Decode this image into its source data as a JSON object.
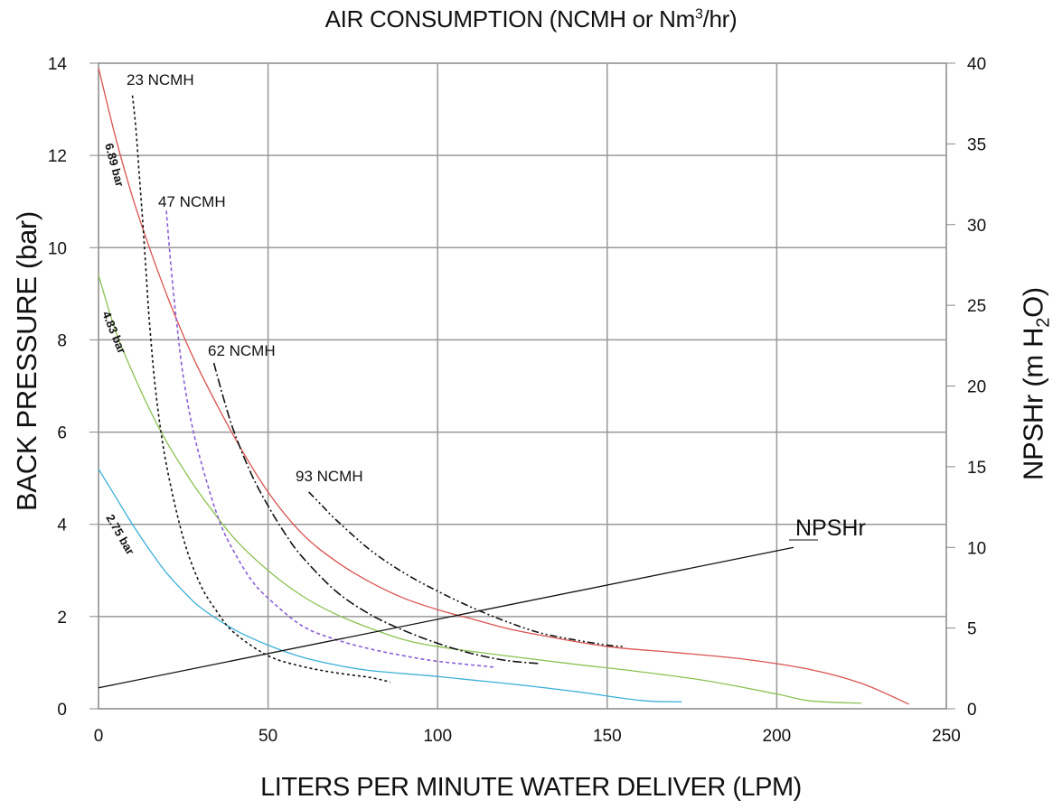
{
  "chart_data": {
    "type": "line",
    "title": {
      "main": "AIR CONSUMPTION (NCMH or Nm",
      "sup": "3",
      "tail": "/hr)"
    },
    "xlabel": "LITERS PER MINUTE WATER DELIVER (LPM)",
    "ylabel": "BACK PRESSURE (bar)",
    "y2label": {
      "main": "NPSHr (m H",
      "sub": "2",
      "tail": "O)"
    },
    "xlim": [
      0,
      250
    ],
    "ylim": [
      0,
      14
    ],
    "y2lim": [
      0,
      40
    ],
    "x_ticks": [
      "0",
      "50",
      "100",
      "150",
      "200",
      "250"
    ],
    "y_ticks": [
      "0",
      "2",
      "4",
      "6",
      "8",
      "10",
      "12",
      "14"
    ],
    "y2_ticks": [
      "0",
      "5",
      "10",
      "15",
      "20",
      "25",
      "30",
      "35",
      "40"
    ],
    "grid": true,
    "colors": {
      "bar_6_89": "#d9534f",
      "bar_4_83": "#8cc152",
      "bar_2_75": "#3bb0d8",
      "ncmh_47": "#8a5fd6",
      "black": "#111111"
    },
    "series": [
      {
        "name": "6.89 bar",
        "color": "#d9534f",
        "dash": "",
        "x": [
          0,
          5,
          10,
          15,
          20,
          25,
          30,
          40,
          50,
          60,
          70,
          80,
          90,
          100,
          110,
          120,
          130,
          150,
          170,
          190,
          210,
          225,
          239
        ],
        "y": [
          13.9,
          12.4,
          11.1,
          10.0,
          9.0,
          8.1,
          7.3,
          5.9,
          4.7,
          3.8,
          3.2,
          2.75,
          2.4,
          2.15,
          1.95,
          1.75,
          1.6,
          1.35,
          1.22,
          1.08,
          0.85,
          0.55,
          0.1
        ]
      },
      {
        "name": "4.83 bar",
        "color": "#8cc152",
        "dash": "",
        "x": [
          0,
          5,
          10,
          15,
          20,
          25,
          30,
          40,
          50,
          60,
          70,
          80,
          90,
          100,
          120,
          140,
          160,
          180,
          200,
          210,
          225
        ],
        "y": [
          9.4,
          8.2,
          7.3,
          6.5,
          5.8,
          5.2,
          4.65,
          3.7,
          3.0,
          2.45,
          2.05,
          1.75,
          1.5,
          1.35,
          1.15,
          0.97,
          0.8,
          0.6,
          0.32,
          0.17,
          0.12
        ]
      },
      {
        "name": "2.75 bar",
        "color": "#3bb0d8",
        "dash": "",
        "x": [
          0,
          5,
          10,
          15,
          20,
          25,
          30,
          40,
          50,
          60,
          70,
          80,
          100,
          120,
          140,
          160,
          172
        ],
        "y": [
          5.2,
          4.6,
          4.0,
          3.45,
          2.95,
          2.55,
          2.2,
          1.72,
          1.38,
          1.12,
          0.95,
          0.83,
          0.7,
          0.55,
          0.38,
          0.18,
          0.15
        ]
      },
      {
        "name": "23 NCMH",
        "color": "#111111",
        "dash": "3,3",
        "x": [
          10,
          11,
          12,
          13,
          14,
          15,
          17,
          20,
          25,
          30,
          35,
          40,
          50,
          60,
          70,
          80,
          86
        ],
        "y": [
          13.3,
          12.6,
          11.6,
          10.6,
          9.5,
          8.4,
          6.8,
          5.3,
          3.7,
          2.7,
          2.1,
          1.65,
          1.15,
          0.92,
          0.78,
          0.68,
          0.58
        ]
      },
      {
        "name": "47 NCMH",
        "color": "#8a5fd6",
        "dash": "4,3",
        "x": [
          20,
          21,
          22,
          23,
          25,
          28,
          32,
          36,
          40,
          45,
          50,
          60,
          70,
          80,
          90,
          100,
          117
        ],
        "y": [
          10.8,
          9.9,
          9.1,
          8.4,
          7.2,
          6.0,
          4.9,
          4.0,
          3.4,
          2.8,
          2.4,
          1.8,
          1.5,
          1.3,
          1.15,
          1.03,
          0.9
        ]
      },
      {
        "name": "62 NCMH",
        "color": "#111111",
        "dash": "10,3,2,3",
        "x": [
          34,
          37,
          40,
          45,
          50,
          55,
          60,
          70,
          80,
          90,
          100,
          110,
          120,
          130
        ],
        "y": [
          7.5,
          6.7,
          6.0,
          5.1,
          4.4,
          3.8,
          3.3,
          2.55,
          2.05,
          1.7,
          1.42,
          1.2,
          1.05,
          0.98
        ]
      },
      {
        "name": "93 NCMH",
        "color": "#111111",
        "dash": "8,3,2,3,2,3",
        "x": [
          62,
          66,
          70,
          80,
          90,
          100,
          110,
          120,
          130,
          140,
          150,
          155
        ],
        "y": [
          4.7,
          4.4,
          4.1,
          3.45,
          2.95,
          2.55,
          2.2,
          1.9,
          1.65,
          1.5,
          1.38,
          1.35
        ]
      },
      {
        "name": "NPSHr",
        "color": "#111111",
        "dash": "",
        "axis": "y2",
        "x": [
          0,
          205
        ],
        "y": [
          1.3,
          10.0
        ]
      }
    ],
    "labels": {
      "ncmh_23": "23 NCMH",
      "ncmh_47": "47 NCMH",
      "ncmh_62": "62 NCMH",
      "ncmh_93": "93 NCMH",
      "bar_6_89": "6.89 bar",
      "bar_4_83": "4.83 bar",
      "bar_2_75": "2.75 bar",
      "npshr": "NPSHr"
    }
  }
}
